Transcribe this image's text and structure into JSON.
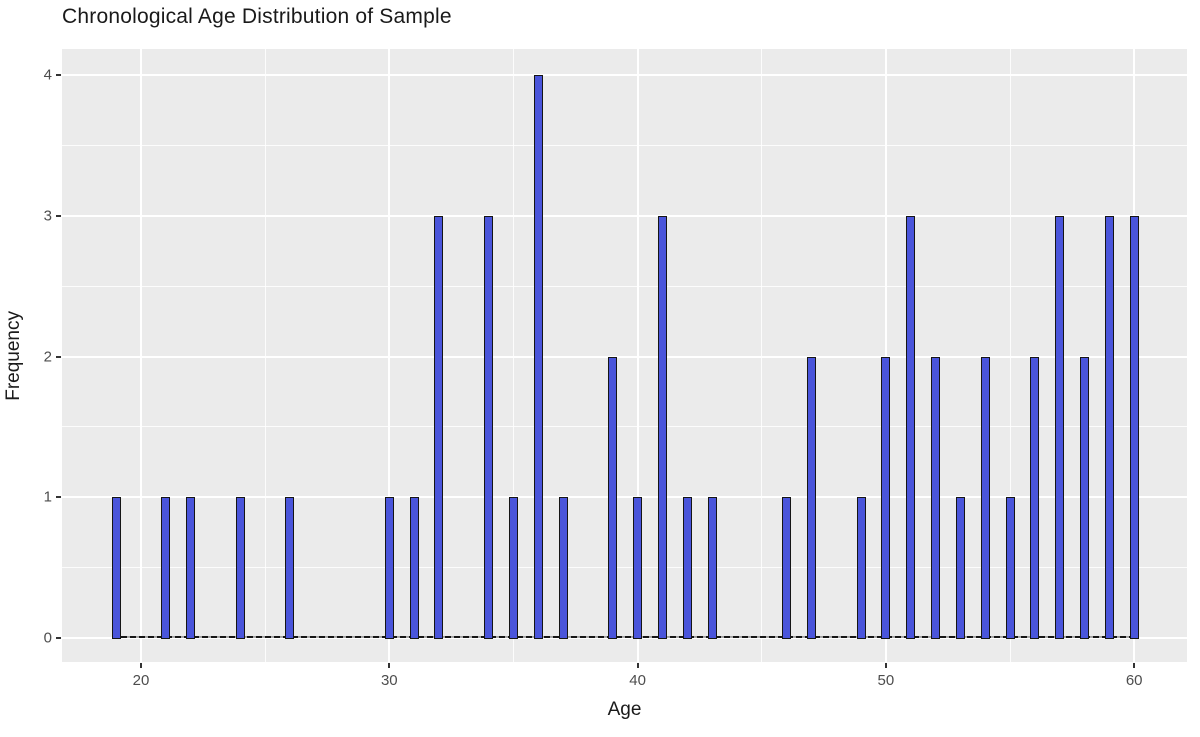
{
  "title": "Chronological Age Distribution of Sample",
  "chart_data": {
    "type": "bar",
    "title": "Chronological Age Distribution of Sample",
    "xlabel": "Age",
    "ylabel": "Frequency",
    "x": [
      19,
      21,
      22,
      24,
      26,
      30,
      31,
      32,
      34,
      35,
      36,
      37,
      39,
      40,
      41,
      42,
      43,
      46,
      47,
      49,
      50,
      51,
      52,
      53,
      54,
      55,
      56,
      57,
      58,
      59,
      60
    ],
    "values": [
      1,
      1,
      1,
      1,
      1,
      1,
      1,
      3,
      3,
      1,
      4,
      1,
      2,
      1,
      3,
      1,
      1,
      1,
      2,
      1,
      2,
      3,
      2,
      1,
      2,
      1,
      2,
      3,
      2,
      3,
      3
    ],
    "xlim": [
      16.95,
      62.05
    ],
    "ylim": [
      0,
      4.2
    ],
    "x_ticks": [
      20,
      30,
      40,
      50,
      60
    ],
    "y_ticks": [
      0,
      1,
      2,
      3,
      4
    ],
    "x_minor_ticks": [
      25,
      35,
      45,
      55
    ],
    "y_minor_ticks": [
      0.5,
      1.5,
      2.5,
      3.5
    ],
    "grid": "on",
    "legend_position": "none",
    "colors": {
      "panel_background": "#EBEBEB",
      "gridline": "#FFFFFF",
      "bar_fill": "#4A55DB",
      "bar_outline": "#151515",
      "tick_label": "#4D4D4D",
      "axis_title": "#1a1a1a",
      "title": "#1a1a1a"
    }
  }
}
